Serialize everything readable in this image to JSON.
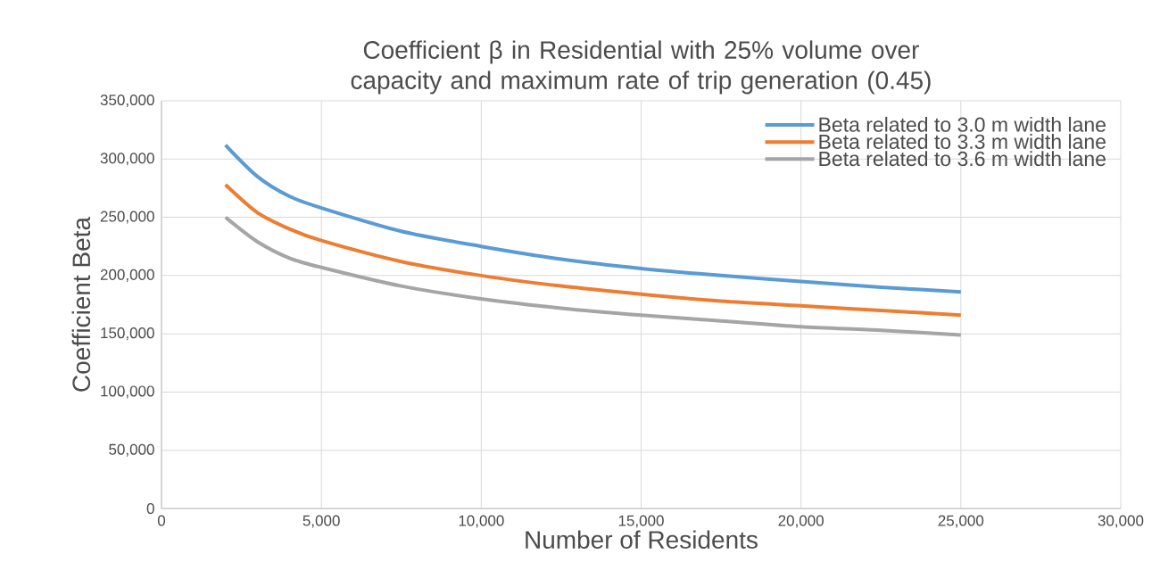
{
  "chart_data": {
    "type": "line",
    "title": "Coefficient β in Residential with 25% volume over capacity and maximum rate of trip generation (0.45)",
    "xlabel": "Number of Residents",
    "ylabel": "Coefficient Beta",
    "x": [
      2000,
      3000,
      4000,
      5000,
      7500,
      10000,
      12500,
      15000,
      17500,
      20000,
      22500,
      25000
    ],
    "series": [
      {
        "name": "Beta related to 3.0 m width lane",
        "color": "#5b9bd5",
        "values": [
          312000,
          285000,
          268000,
          258000,
          238000,
          225000,
          214000,
          206000,
          200000,
          195000,
          190000,
          186000
        ]
      },
      {
        "name": "Beta related to 3.3 m width lane",
        "color": "#ed7d31",
        "values": [
          278000,
          254000,
          240000,
          230000,
          212000,
          200000,
          191000,
          184000,
          178000,
          174000,
          170000,
          166000
        ]
      },
      {
        "name": "Beta related to 3.6 m width lane",
        "color": "#a5a5a5",
        "values": [
          250000,
          229000,
          215000,
          207000,
          191000,
          180000,
          172000,
          166000,
          161000,
          156000,
          153000,
          149000
        ]
      }
    ],
    "xlim": [
      0,
      30000
    ],
    "ylim": [
      0,
      350000
    ],
    "xticks": [
      0,
      {
        "value": 5000,
        "label": "5,000"
      },
      {
        "value": 10000,
        "label": "10,000"
      },
      {
        "value": 15000,
        "label": "15,000"
      },
      {
        "value": 20000,
        "label": "20,000"
      },
      {
        "value": 25000,
        "label": "25,000"
      },
      {
        "value": 30000,
        "label": "30,000"
      }
    ],
    "yticks": [
      0,
      {
        "value": 50000,
        "label": "50,000"
      },
      {
        "value": 100000,
        "label": "100,000"
      },
      {
        "value": 150000,
        "label": "150,000"
      },
      {
        "value": 200000,
        "label": "200,000"
      },
      {
        "value": 250000,
        "label": "250,000"
      },
      {
        "value": 300000,
        "label": "300,000"
      },
      {
        "value": 350000,
        "label": "350,000"
      }
    ],
    "grid": true,
    "legend": "top right",
    "marker": "none",
    "line_style": "solid"
  }
}
